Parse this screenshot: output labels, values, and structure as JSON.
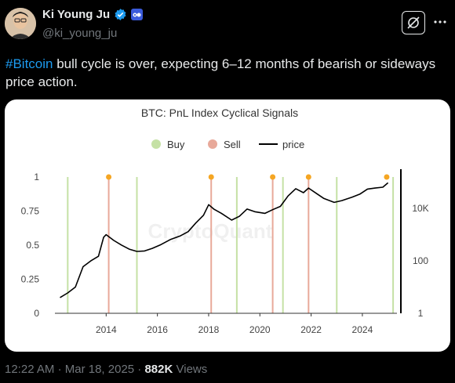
{
  "author": {
    "name": "Ki Young Ju",
    "handle": "@ki_young_ju"
  },
  "tweet": {
    "hashtag": "#Bitcoin",
    "text": " bull cycle is over, expecting 6–12 months of bearish or sideways price action."
  },
  "meta": {
    "time": "12:22 AM",
    "date": "Mar 18, 2025",
    "views_count": "882K",
    "views_label": "Views"
  },
  "colors": {
    "accent": "#1d9bf0",
    "buy": "#c5e1a5",
    "sell": "#e8a99a",
    "signal_dot": "#f5a623",
    "price_line": "#000000"
  },
  "chart_data": {
    "type": "line",
    "title": "BTC: PnL Index Cyclical Signals",
    "legend": [
      "Buy",
      "Sell",
      "price"
    ],
    "legend_position": "top",
    "watermark": "CryptoQuant",
    "x_ticks": [
      "2014",
      "2016",
      "2018",
      "2020",
      "2022",
      "2024"
    ],
    "y_left_ticks": [
      "0",
      "0.25",
      "0.5",
      "0.75",
      "1"
    ],
    "y_right_ticks": [
      "1",
      "100",
      "10K"
    ],
    "y_right_scale": "log",
    "buy_signals": [
      2012.5,
      2015.2,
      2019.1,
      2020.9,
      2023.0,
      2025.2
    ],
    "sell_signals": [
      2014.1,
      2018.1,
      2020.5,
      2021.9
    ],
    "top_markers": [
      2014.1,
      2018.1,
      2020.5,
      2021.9,
      2024.95
    ],
    "price": {
      "x": [
        2012.2,
        2012.5,
        2012.8,
        2013.1,
        2013.4,
        2013.7,
        2013.9,
        2014.0,
        2014.3,
        2014.6,
        2014.9,
        2015.2,
        2015.5,
        2015.8,
        2016.1,
        2016.5,
        2016.9,
        2017.2,
        2017.5,
        2017.8,
        2018.0,
        2018.2,
        2018.5,
        2018.9,
        2019.2,
        2019.5,
        2019.8,
        2020.2,
        2020.5,
        2020.8,
        2021.1,
        2021.4,
        2021.7,
        2021.9,
        2022.2,
        2022.5,
        2022.9,
        2023.2,
        2023.6,
        2023.9,
        2024.2,
        2024.5,
        2024.8,
        2025.0
      ],
      "y": [
        4,
        6,
        10,
        60,
        100,
        150,
        800,
        1000,
        600,
        400,
        280,
        230,
        240,
        300,
        400,
        650,
        900,
        1300,
        2800,
        5500,
        14000,
        9500,
        6500,
        3600,
        5000,
        9500,
        7500,
        6500,
        9000,
        12000,
        30000,
        57000,
        40000,
        60000,
        38000,
        24000,
        17000,
        20000,
        27000,
        35000,
        55000,
        60000,
        65000,
        95000
      ]
    }
  }
}
